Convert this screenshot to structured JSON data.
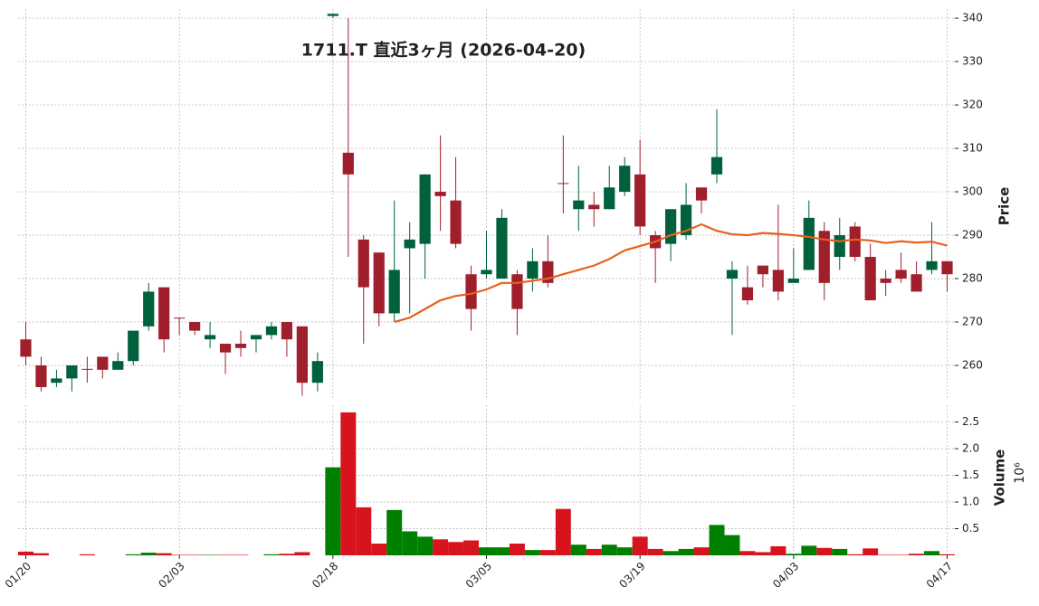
{
  "chart_data": {
    "type": "candlestick",
    "title": "1711.T 直近3ヶ月 (2026-04-20)",
    "ylabel": "Price",
    "y2label": "Volume",
    "y2_offset_label": "10⁶",
    "xticks": [
      {
        "value": 0,
        "label": "01/20"
      },
      {
        "value": 10,
        "label": "02/03"
      },
      {
        "value": 20,
        "label": "02/18"
      },
      {
        "value": 30,
        "label": "03/05"
      },
      {
        "value": 40,
        "label": "03/19"
      },
      {
        "value": 50,
        "label": "04/03"
      },
      {
        "value": 60,
        "label": "04/17"
      }
    ],
    "xlim": [
      -0.5,
      60.5
    ],
    "ylim": [
      252.5,
      342.1
    ],
    "yticks": [
      260,
      270,
      280,
      290,
      300,
      310,
      320,
      330,
      340
    ],
    "y2lim": [
      0,
      2.95
    ],
    "y2ticks": [
      0.5,
      {
        "value": 1,
        "label": "1.0"
      },
      1.5,
      {
        "value": 2,
        "label": "2.0"
      },
      2.5
    ],
    "grid": true,
    "up_color": "#00613c",
    "down_color": "#a01f2c",
    "volume_up_color": "#008000",
    "volume_down_color": "#d7141e",
    "ma_color": "#e8601c",
    "open": [
      266,
      260,
      256,
      257,
      259.2,
      262,
      259,
      261,
      269,
      278,
      271,
      270,
      266,
      265,
      265,
      266,
      267,
      270,
      269,
      256,
      340.5,
      309,
      289,
      286,
      272,
      287,
      288,
      300,
      298,
      281,
      281,
      280,
      281,
      280,
      284,
      302,
      296,
      297,
      296,
      300,
      304,
      290,
      288,
      290,
      301,
      304,
      280,
      278,
      283,
      282,
      279,
      282,
      291,
      285,
      292,
      285,
      280,
      282,
      281,
      282,
      284
    ],
    "high": [
      270,
      262,
      259,
      260,
      262,
      262,
      263,
      268,
      279,
      278,
      271,
      270,
      270,
      265,
      268,
      267,
      270,
      270,
      269,
      263,
      341,
      340,
      290,
      286,
      298,
      293,
      304,
      313,
      308,
      283,
      291,
      296,
      282,
      287,
      290,
      313,
      306,
      300,
      306,
      308,
      312,
      291,
      296,
      302,
      301,
      319,
      284,
      283,
      283,
      297,
      287,
      298,
      293,
      294,
      293,
      288,
      282,
      286,
      284,
      293,
      284
    ],
    "low": [
      260,
      254,
      255,
      254,
      256,
      257,
      259,
      260,
      268,
      263,
      267,
      267,
      264,
      258,
      262,
      263,
      266,
      262,
      253,
      254,
      340,
      285,
      265,
      269,
      270,
      272,
      280,
      291,
      287,
      268,
      280,
      280,
      267,
      277,
      278,
      295,
      291,
      292,
      296,
      299,
      290,
      279,
      284,
      289,
      295,
      302,
      267,
      274,
      278,
      275,
      279,
      282,
      275,
      282,
      284,
      275,
      276,
      279,
      277,
      281,
      277
    ],
    "close": [
      262,
      255,
      257,
      260,
      259,
      259,
      261,
      268,
      277,
      266,
      270.8,
      268,
      267,
      263,
      264,
      267,
      269,
      266,
      256,
      261,
      341,
      304,
      278,
      272,
      282,
      289,
      304,
      299,
      288,
      273,
      282,
      294,
      273,
      284,
      279,
      301.8,
      298,
      296,
      301,
      306,
      292,
      287,
      296,
      297,
      298,
      308,
      282,
      275,
      281,
      277,
      280,
      294,
      279,
      290,
      285,
      275,
      279,
      280,
      277,
      284,
      281
    ],
    "volume": [
      0.07,
      0.04,
      0,
      0,
      0.02,
      0,
      0,
      0.02,
      0.05,
      0.04,
      0.01,
      0.01,
      0.01,
      0.01,
      0.01,
      0,
      0.02,
      0.03,
      0.06,
      0,
      1.65,
      2.68,
      0.9,
      0.22,
      0.85,
      0.45,
      0.35,
      0.3,
      0.25,
      0.28,
      0.15,
      0.15,
      0.22,
      0.1,
      0.1,
      0.87,
      0.2,
      0.12,
      0.2,
      0.15,
      0.35,
      0.12,
      0.08,
      0.12,
      0.15,
      0.57,
      0.38,
      0.08,
      0.06,
      0.17,
      0.03,
      0.18,
      0.14,
      0.12,
      0.02,
      0.13,
      0.01,
      0.01,
      0.03,
      0.08,
      0.02
    ],
    "ma": [
      null,
      null,
      null,
      null,
      null,
      null,
      null,
      null,
      null,
      null,
      null,
      null,
      null,
      null,
      null,
      null,
      null,
      null,
      null,
      null,
      null,
      null,
      null,
      null,
      270,
      271,
      273,
      275,
      276,
      276.5,
      277.5,
      279,
      279,
      279.5,
      280,
      281,
      282,
      283,
      284.5,
      286.5,
      287.5,
      288.5,
      290,
      291,
      292.5,
      291,
      290.2,
      290,
      290.5,
      290.3,
      290,
      289.6,
      289,
      288.6,
      289,
      288.8,
      288.2,
      288.6,
      288.3,
      288.5,
      287.6
    ]
  }
}
